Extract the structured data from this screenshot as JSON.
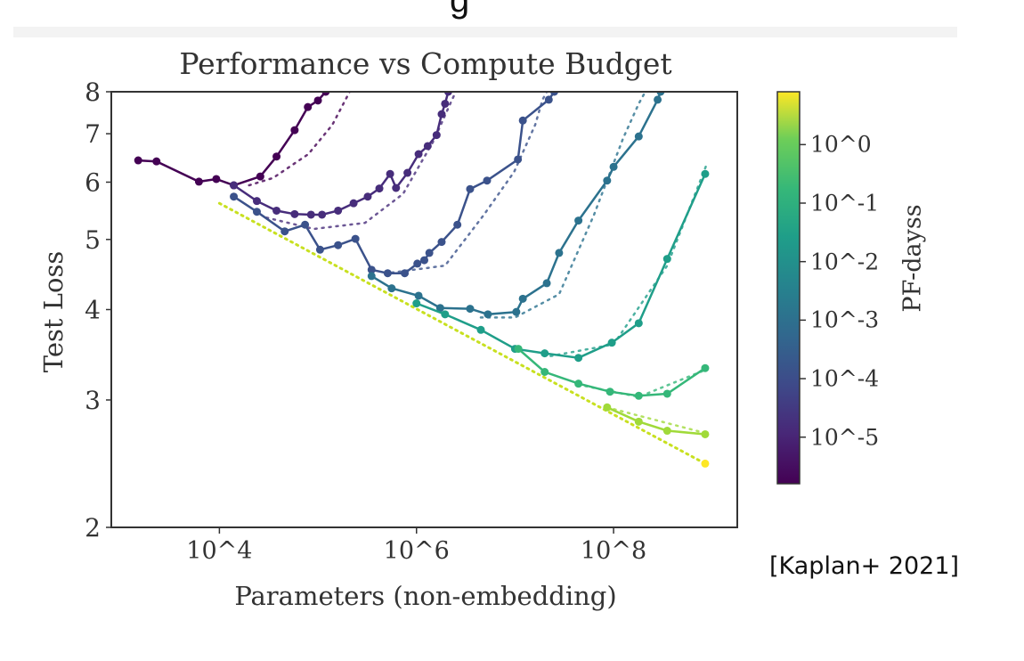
{
  "heading_fragment": "g",
  "citation": "[Kaplan+ 2021]",
  "chart_data": {
    "type": "line",
    "title": "Performance vs Compute Budget",
    "xlabel": "Parameters (non-embedding)",
    "ylabel": "Test Loss",
    "xscale": "log",
    "yscale": "log",
    "xlim": [
      800,
      1800000000.0
    ],
    "ylim": [
      2,
      8
    ],
    "xticks": [
      {
        "value": 10000.0,
        "label": "10^4"
      },
      {
        "value": 1000000.0,
        "label": "10^6"
      },
      {
        "value": 100000000.0,
        "label": "10^8"
      }
    ],
    "yticks": [
      {
        "value": 2,
        "label": "2"
      },
      {
        "value": 3,
        "label": "3"
      },
      {
        "value": 4,
        "label": "4"
      },
      {
        "value": 5,
        "label": "5"
      },
      {
        "value": 6,
        "label": "6"
      },
      {
        "value": 7,
        "label": "7"
      },
      {
        "value": 8,
        "label": "8"
      }
    ],
    "grid": false,
    "colorbar": {
      "label": "PF-dayss",
      "scale": "log",
      "colormap": "viridis",
      "range": [
        1.6e-06,
        8
      ],
      "ticks": [
        {
          "value": 1,
          "label": "10^0"
        },
        {
          "value": 0.1,
          "label": "10^-1"
        },
        {
          "value": 0.01,
          "label": "10^-2"
        },
        {
          "value": 0.001,
          "label": "10^-3"
        },
        {
          "value": 0.0001,
          "label": "10^-4"
        },
        {
          "value": 1e-05,
          "label": "10^-5"
        }
      ]
    },
    "series": [
      {
        "color": "#440154",
        "points": [
          [
            1500.0,
            6.43
          ],
          [
            2300.0,
            6.41
          ],
          [
            6200.0,
            6.01
          ],
          [
            9300.0,
            6.06
          ],
          [
            14000.0,
            5.94
          ],
          [
            26000.0,
            6.11
          ],
          [
            38000.0,
            6.51
          ],
          [
            58000.0,
            7.08
          ],
          [
            79000.0,
            7.62
          ],
          [
            100000.0,
            7.78
          ],
          [
            120000.0,
            8.0
          ]
        ],
        "fit": [
          [
            20000.0,
            5.94
          ],
          [
            35000.0,
            6.08
          ],
          [
            80000.0,
            6.56
          ],
          [
            140000.0,
            7.2
          ],
          [
            210000.0,
            8.0
          ]
        ]
      },
      {
        "color": "#472d7b",
        "points": [
          [
            14000.0,
            5.94
          ],
          [
            24000.0,
            5.65
          ],
          [
            38000.0,
            5.48
          ],
          [
            58000.0,
            5.42
          ],
          [
            85000.0,
            5.41
          ],
          [
            110000.0,
            5.41
          ],
          [
            160000.0,
            5.48
          ],
          [
            230000.0,
            5.61
          ],
          [
            320000.0,
            5.73
          ],
          [
            420000.0,
            5.88
          ],
          [
            540000.0,
            6.16
          ],
          [
            620000.0,
            5.89
          ],
          [
            810000.0,
            6.18
          ],
          [
            1050000.0,
            6.56
          ],
          [
            1300000.0,
            6.73
          ],
          [
            1600000.0,
            6.97
          ],
          [
            1800000.0,
            7.45
          ],
          [
            1950000.0,
            7.7
          ],
          [
            2100000.0,
            8.0
          ]
        ],
        "fit": [
          [
            30000.0,
            5.36
          ],
          [
            91000.0,
            5.17
          ],
          [
            300000.0,
            5.27
          ],
          [
            730000.0,
            5.78
          ],
          [
            1500000.0,
            6.85
          ],
          [
            2200000.0,
            7.7
          ],
          [
            2500000.0,
            8.0
          ]
        ]
      },
      {
        "color": "#3b528b",
        "points": [
          [
            14000.0,
            5.73
          ],
          [
            24000.0,
            5.46
          ],
          [
            46000.0,
            5.13
          ],
          [
            74000.0,
            5.24
          ],
          [
            105000.0,
            4.84
          ],
          [
            160000.0,
            4.91
          ],
          [
            240000.0,
            5.01
          ],
          [
            350000.0,
            4.54
          ],
          [
            510000.0,
            4.49
          ],
          [
            760000.0,
            4.49
          ],
          [
            1020000.0,
            4.63
          ],
          [
            1200000.0,
            4.68
          ],
          [
            1350000.0,
            4.79
          ],
          [
            1800000.0,
            4.96
          ],
          [
            2600000.0,
            5.24
          ],
          [
            3500000.0,
            5.87
          ],
          [
            5200000.0,
            6.03
          ],
          [
            10700000.0,
            6.45
          ],
          [
            12000000.0,
            7.3
          ],
          [
            22000000.0,
            7.8
          ],
          [
            25000000.0,
            8.0
          ]
        ],
        "fit": [
          [
            560000.0,
            4.5
          ],
          [
            1950000.0,
            4.6
          ],
          [
            4800000.0,
            5.4
          ],
          [
            9800000.0,
            6.2
          ],
          [
            16000000.0,
            7.2
          ],
          [
            19000000.0,
            7.8
          ],
          [
            21000000.0,
            8.0
          ]
        ]
      },
      {
        "color": "#2c728e",
        "points": [
          [
            350000.0,
            4.45
          ],
          [
            560000.0,
            4.28
          ],
          [
            1050000.0,
            4.18
          ],
          [
            1740000.0,
            4.02
          ],
          [
            3500000.0,
            4.01
          ],
          [
            5300000.0,
            3.94
          ],
          [
            10300000.0,
            3.97
          ],
          [
            12000000.0,
            4.14
          ],
          [
            21000000.0,
            4.35
          ],
          [
            28000000.0,
            4.79
          ],
          [
            44000000.0,
            5.31
          ],
          [
            86000000.0,
            6.03
          ],
          [
            100000000.0,
            6.3
          ],
          [
            180000000.0,
            6.94
          ],
          [
            280000000.0,
            7.8
          ],
          [
            300000000.0,
            8.0
          ]
        ],
        "fit": [
          [
            4500000.0,
            3.9
          ],
          [
            10000000.0,
            3.9
          ],
          [
            28000000.0,
            4.2
          ],
          [
            63000000.0,
            5.4
          ],
          [
            125000000.0,
            6.9
          ],
          [
            180000000.0,
            7.7
          ],
          [
            210000000.0,
            8.0
          ]
        ]
      },
      {
        "color": "#1f9e89",
        "points": [
          [
            1000000.0,
            4.08
          ],
          [
            1950000.0,
            3.94
          ],
          [
            4500000.0,
            3.75
          ],
          [
            10000000.0,
            3.53
          ],
          [
            20000000.0,
            3.48
          ],
          [
            44000000.0,
            3.43
          ],
          [
            96000000.0,
            3.6
          ],
          [
            180000000.0,
            3.83
          ],
          [
            350000000.0,
            4.7
          ],
          [
            850000000.0,
            6.16
          ]
        ],
        "fit": [
          [
            23000000.0,
            3.45
          ],
          [
            100000000.0,
            3.58
          ],
          [
            350000000.0,
            4.6
          ],
          [
            900000000.0,
            6.4
          ]
        ]
      },
      {
        "color": "#35b779",
        "points": [
          [
            10800000.0,
            3.53
          ],
          [
            20000000.0,
            3.28
          ],
          [
            44000000.0,
            3.16
          ],
          [
            92000000.0,
            3.08
          ],
          [
            180000000.0,
            3.04
          ],
          [
            350000000.0,
            3.06
          ],
          [
            850000000.0,
            3.32
          ]
        ],
        "fit": [
          [
            44000000.0,
            3.15
          ],
          [
            180000000.0,
            3.03
          ],
          [
            850000000.0,
            3.3
          ]
        ]
      },
      {
        "color": "#a0da39",
        "points": [
          [
            86000000.0,
            2.93
          ],
          [
            180000000.0,
            2.8
          ],
          [
            350000000.0,
            2.72
          ],
          [
            850000000.0,
            2.69
          ]
        ],
        "fit": [
          [
            86000000.0,
            2.93
          ],
          [
            850000000.0,
            2.7
          ]
        ]
      },
      {
        "color": "#fde725",
        "points": [
          [
            850000000.0,
            2.45
          ]
        ],
        "fit": []
      }
    ],
    "envelope": {
      "color": "#c8e020",
      "points": [
        [
          10000.0,
          5.61
        ],
        [
          850000000.0,
          2.45
        ]
      ]
    }
  }
}
